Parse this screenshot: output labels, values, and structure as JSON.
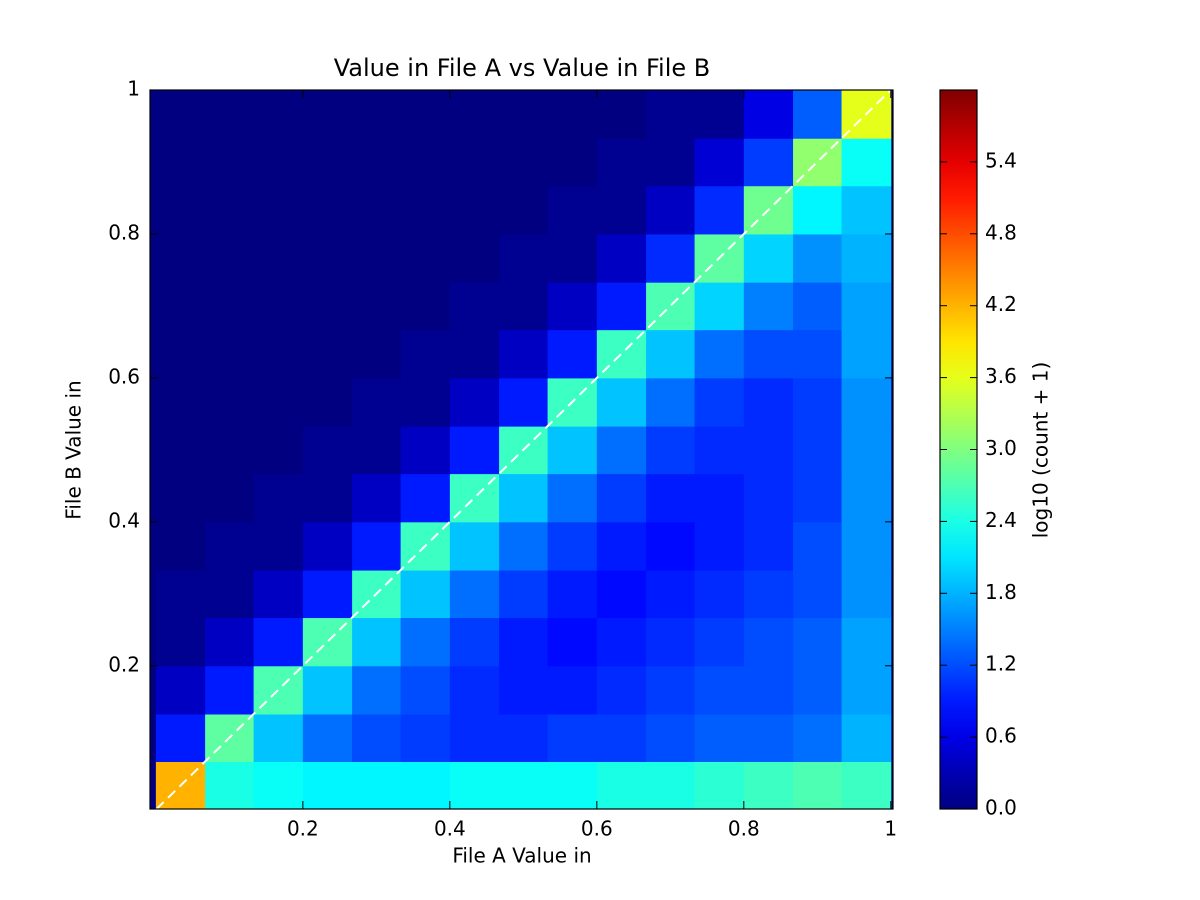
{
  "chart_data": {
    "type": "hexbin",
    "title": "Value in File A vs Value in File B",
    "x_label": "File A Value in",
    "y_label": "File B Value in",
    "colorbar_label": "log10 (count + 1)",
    "colormap": "jet",
    "xlim": [
      -0.008,
      1.003
    ],
    "ylim": [
      0.001,
      1
    ],
    "xticks": [
      0.2,
      0.4,
      0.6,
      0.8,
      1
    ],
    "yticks": [
      0.2,
      0.4,
      0.6,
      0.8,
      1
    ],
    "clim": [
      0,
      6
    ],
    "cticks": [
      {
        "value": 0,
        "label": "0.0"
      },
      {
        "value": 0.6,
        "label": "0.6"
      },
      {
        "value": 1.2,
        "label": "1.2"
      },
      {
        "value": 1.8,
        "label": "1.8"
      },
      {
        "value": 2.4,
        "label": "2.4"
      },
      {
        "value": 3,
        "label": "3.0"
      },
      {
        "value": 3.6,
        "label": "3.6"
      },
      {
        "value": 4.2,
        "label": "4.2"
      },
      {
        "value": 4.8,
        "label": "4.8"
      },
      {
        "value": 5.4,
        "label": "5.4"
      }
    ],
    "identity_line": true,
    "xbins": [
      0,
      0.067,
      0.133,
      0.2,
      0.267,
      0.333,
      0.4,
      0.467,
      0.533,
      0.6,
      0.667,
      0.733,
      0.8,
      0.867,
      0.933,
      1
    ],
    "ybins": [
      0,
      0.067,
      0.133,
      0.2,
      0.267,
      0.333,
      0.4,
      0.467,
      0.533,
      0.6,
      0.667,
      0.733,
      0.8,
      0.867,
      0.933,
      1
    ],
    "z": [
      [
        4.2,
        2.4,
        2.3,
        2.2,
        2.2,
        2.2,
        2.3,
        2.3,
        2.3,
        2.4,
        2.4,
        2.5,
        2.6,
        2.7,
        2.6
      ],
      [
        0.9,
        2.8,
        1.9,
        1.4,
        1.2,
        1.1,
        1.0,
        1.0,
        1.1,
        1.1,
        1.2,
        1.3,
        1.3,
        1.4,
        1.8
      ],
      [
        0.4,
        0.9,
        2.7,
        1.9,
        1.4,
        1.2,
        1.0,
        0.9,
        0.9,
        1.0,
        1.1,
        1.2,
        1.2,
        1.3,
        1.7
      ],
      [
        0.1,
        0.4,
        0.9,
        2.7,
        1.9,
        1.4,
        1.1,
        0.9,
        0.8,
        0.9,
        1.0,
        1.1,
        1.2,
        1.3,
        1.7
      ],
      [
        0.1,
        0.1,
        0.4,
        0.9,
        2.6,
        1.9,
        1.4,
        1.1,
        0.9,
        0.8,
        0.9,
        1.0,
        1.1,
        1.2,
        1.6
      ],
      [
        0.0,
        0.1,
        0.1,
        0.4,
        0.9,
        2.6,
        1.9,
        1.4,
        1.1,
        0.9,
        0.8,
        0.9,
        1.0,
        1.2,
        1.6
      ],
      [
        0.0,
        0.0,
        0.1,
        0.1,
        0.4,
        0.9,
        2.6,
        1.9,
        1.4,
        1.1,
        0.9,
        0.9,
        1.0,
        1.1,
        1.6
      ],
      [
        0.0,
        0.0,
        0.0,
        0.1,
        0.1,
        0.4,
        0.9,
        2.6,
        1.9,
        1.4,
        1.1,
        1.0,
        1.0,
        1.1,
        1.6
      ],
      [
        0.0,
        0.0,
        0.0,
        0.0,
        0.1,
        0.1,
        0.4,
        0.9,
        2.6,
        1.9,
        1.4,
        1.1,
        1.0,
        1.1,
        1.6
      ],
      [
        0.0,
        0.0,
        0.0,
        0.0,
        0.0,
        0.1,
        0.1,
        0.4,
        0.9,
        2.6,
        1.9,
        1.4,
        1.2,
        1.2,
        1.7
      ],
      [
        0.0,
        0.0,
        0.0,
        0.0,
        0.0,
        0.0,
        0.1,
        0.1,
        0.4,
        0.9,
        2.7,
        2.0,
        1.5,
        1.3,
        1.7
      ],
      [
        0.0,
        0.0,
        0.0,
        0.0,
        0.0,
        0.0,
        0.0,
        0.1,
        0.1,
        0.4,
        1.0,
        2.8,
        2.0,
        1.6,
        1.8
      ],
      [
        0.0,
        0.0,
        0.0,
        0.0,
        0.0,
        0.0,
        0.0,
        0.0,
        0.1,
        0.1,
        0.4,
        1.0,
        2.9,
        2.2,
        1.9
      ],
      [
        0.0,
        0.0,
        0.0,
        0.0,
        0.0,
        0.0,
        0.0,
        0.0,
        0.0,
        0.1,
        0.1,
        0.5,
        1.1,
        3.1,
        2.3
      ],
      [
        0.0,
        0.0,
        0.0,
        0.0,
        0.0,
        0.0,
        0.0,
        0.0,
        0.0,
        0.0,
        0.1,
        0.1,
        0.6,
        1.3,
        3.6
      ]
    ]
  }
}
